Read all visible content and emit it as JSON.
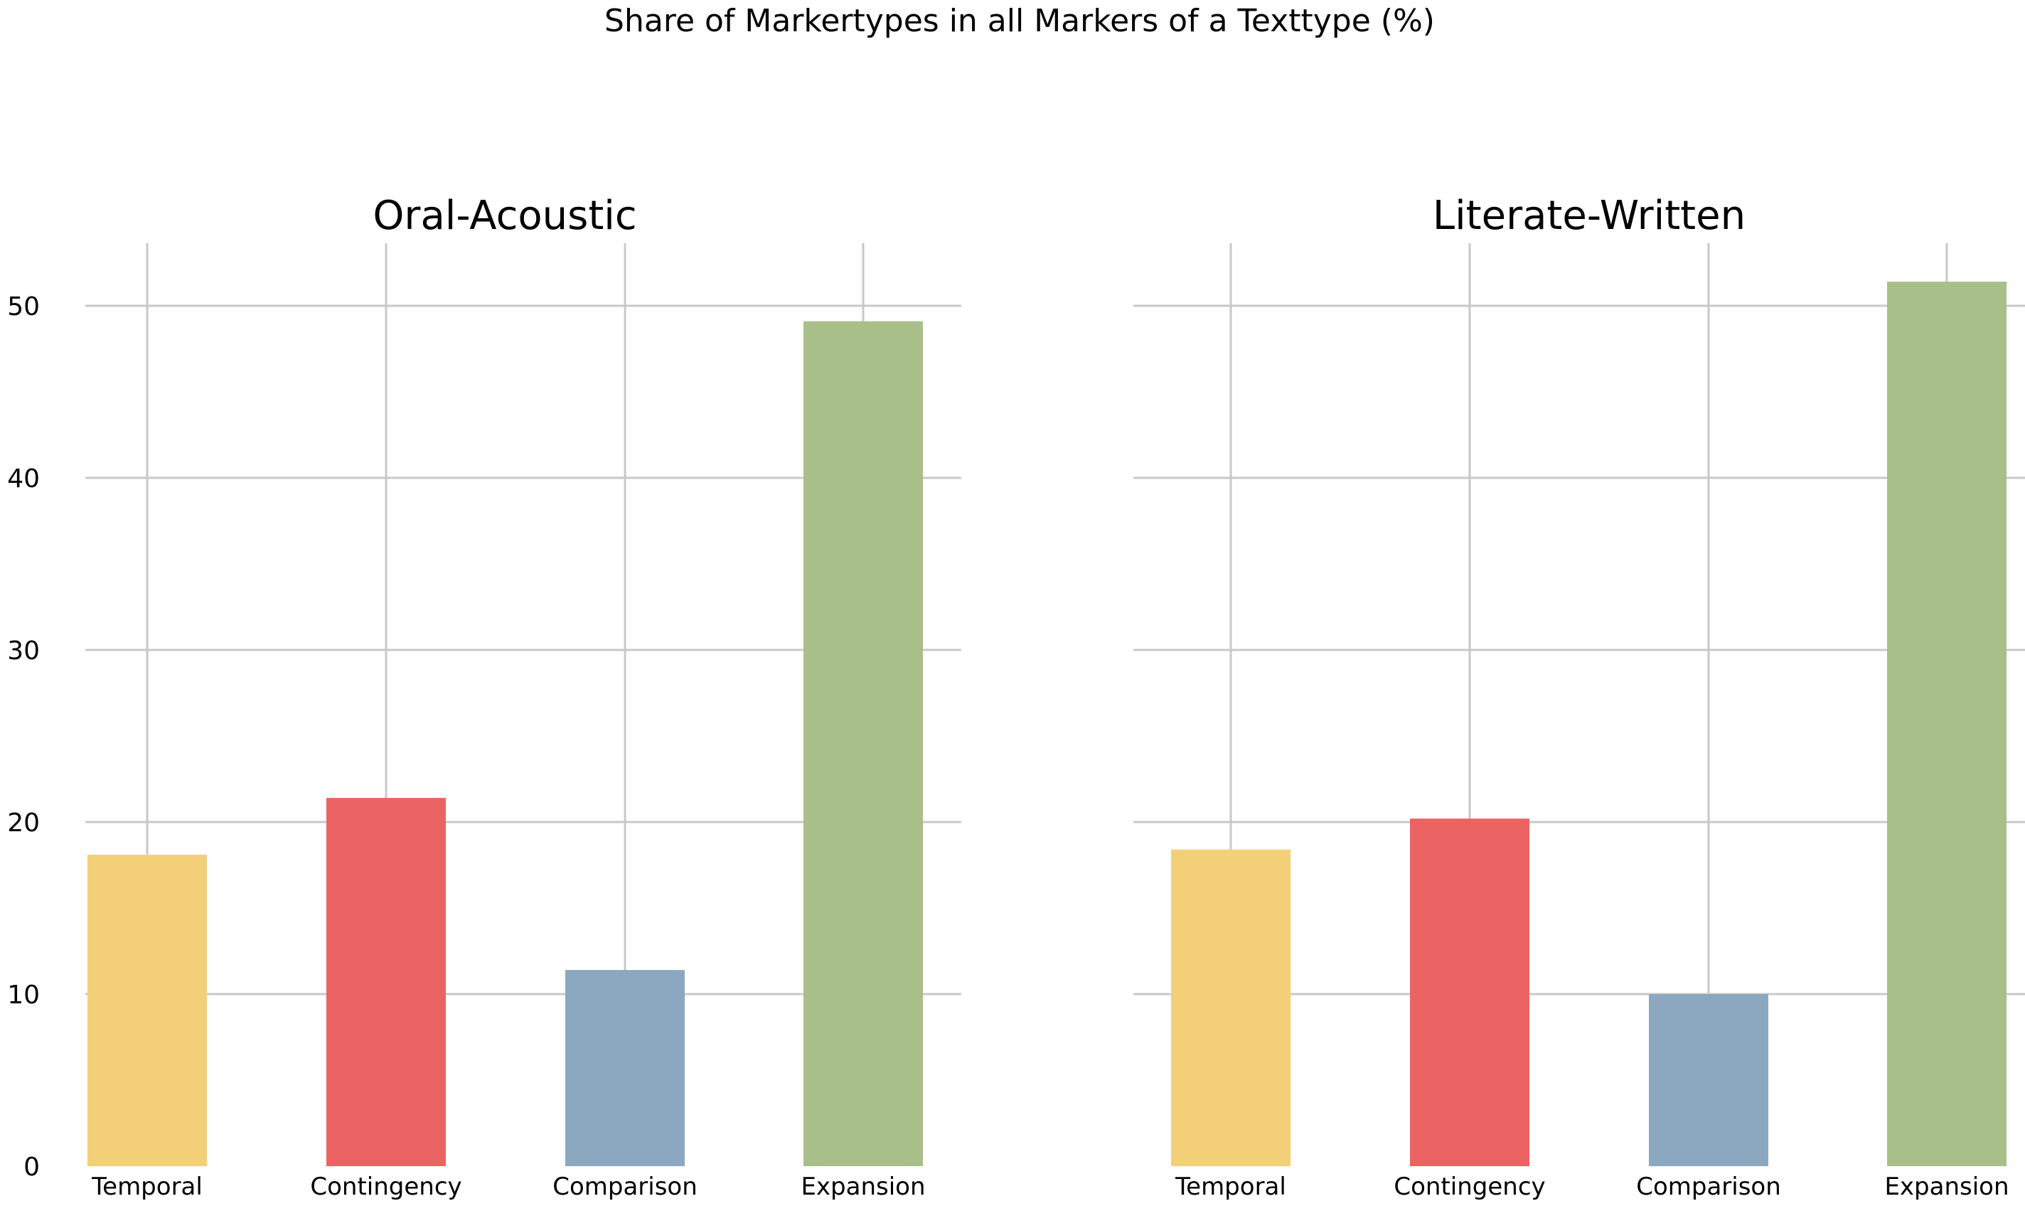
{
  "chart_data": {
    "type": "bar",
    "title": "Share of Markertypes in all Markers of a Texttype (%)",
    "ylim": [
      0,
      54
    ],
    "yticks": [
      0,
      10,
      20,
      30,
      40,
      50
    ],
    "grid": true,
    "categories": [
      "Temporal",
      "Contingency",
      "Comparison",
      "Expansion"
    ],
    "colors": [
      "#F3D078",
      "#EC6364",
      "#8BA8C0",
      "#A8BF8A"
    ],
    "panels": [
      {
        "title": "Oral-Acoustic",
        "values": [
          18.1,
          21.4,
          11.4,
          49.1
        ]
      },
      {
        "title": "Literate-Written",
        "values": [
          18.4,
          20.2,
          10.0,
          51.4
        ]
      }
    ]
  }
}
